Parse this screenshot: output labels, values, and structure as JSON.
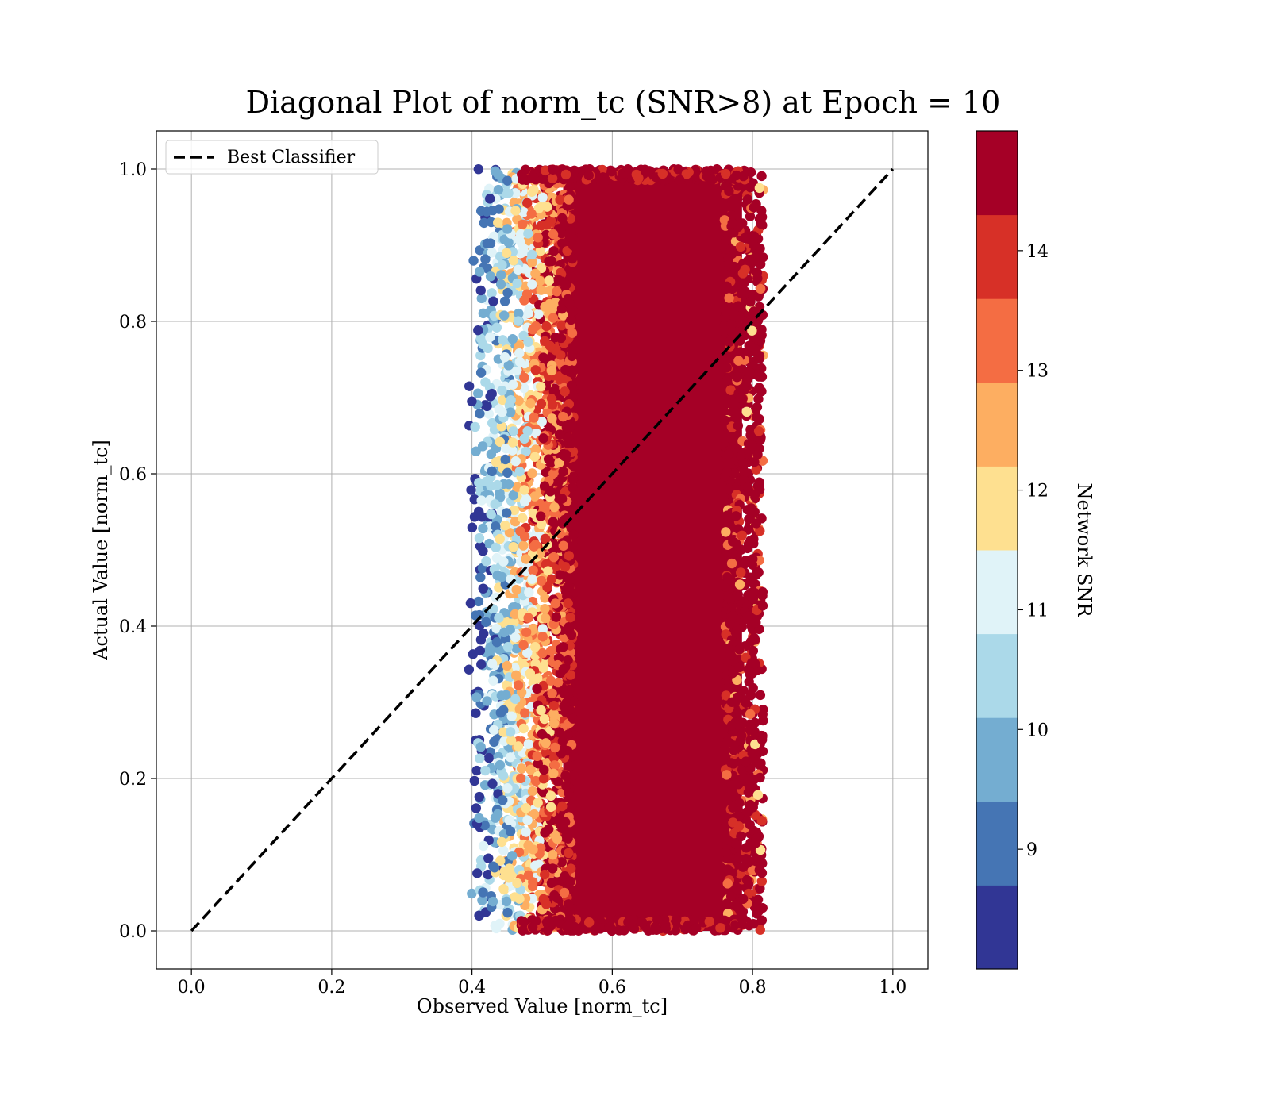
{
  "chart_data": {
    "type": "scatter",
    "title": "Diagonal Plot of norm_tc (SNR>8) at Epoch = 10",
    "xlabel": "Observed Value [norm_tc]",
    "ylabel": "Actual Value [norm_tc]",
    "xlim": [
      -0.05,
      1.05
    ],
    "ylim": [
      -0.05,
      1.05
    ],
    "xticks": [
      "0.0",
      "0.2",
      "0.4",
      "0.6",
      "0.8",
      "1.0"
    ],
    "yticks": [
      "0.0",
      "0.2",
      "0.4",
      "0.6",
      "0.8",
      "1.0"
    ],
    "grid": true,
    "legend": {
      "placement": "upper-left",
      "entries": [
        {
          "label": "Best Classifier",
          "style": "dashed",
          "color": "#000000"
        }
      ]
    },
    "reference_line": {
      "label": "Best Classifier",
      "x": [
        0.0,
        1.0
      ],
      "y": [
        0.0,
        1.0
      ],
      "style": "dashed",
      "color": "#000000"
    },
    "scatter_region": {
      "x_range": [
        0.39,
        0.815
      ],
      "y_range": [
        0.0,
        1.0
      ],
      "dense_core_x": [
        0.52,
        0.79
      ],
      "description_of_color_trend": "low SNR points on left edge (~0.40-0.50), high SNR dense core 0.52-0.80"
    },
    "colorbar": {
      "label": "Network SNR",
      "range": [
        8,
        15
      ],
      "ticks": [
        "9",
        "10",
        "11",
        "12",
        "13",
        "14"
      ],
      "tick_values": [
        9,
        10,
        11,
        12,
        13,
        14
      ],
      "levels": [
        8,
        8.7,
        9.4,
        10.1,
        10.8,
        11.5,
        12.2,
        12.9,
        13.6,
        14.3,
        15
      ],
      "colors": [
        "#313695",
        "#4575b4",
        "#74add1",
        "#abd9e9",
        "#e0f3f8",
        "#fee090",
        "#fdae61",
        "#f46d43",
        "#d73027",
        "#a50026"
      ]
    }
  }
}
